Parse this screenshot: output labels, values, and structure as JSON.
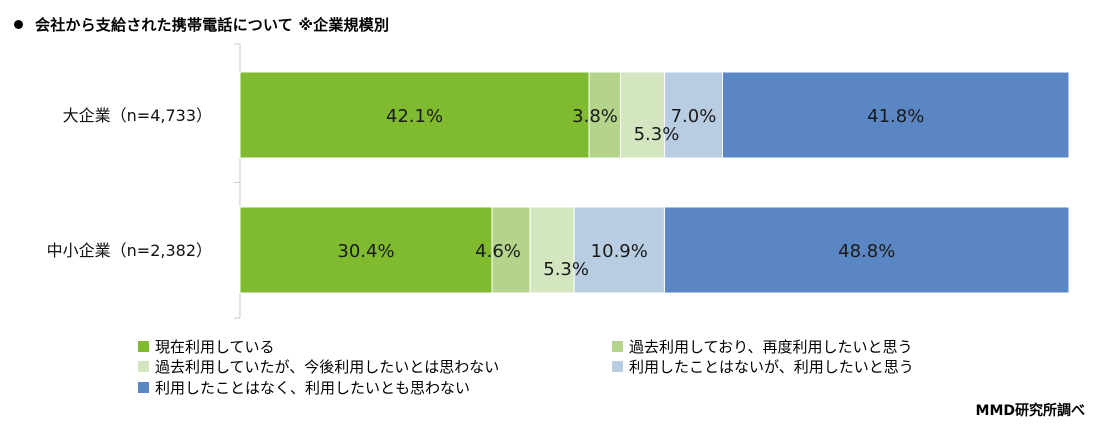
{
  "title": "会社から支給された携帯電話について ※企業規模別",
  "source": "MMD研究所調べ",
  "chart_data": {
    "type": "bar",
    "orientation": "horizontal",
    "stacked": true,
    "percent": true,
    "categories": [
      "大企業（n=4,733）",
      "中小企業（n=2,382）"
    ],
    "series": [
      {
        "name": "現在利用している",
        "values": [
          42.1,
          30.4
        ],
        "color": "#7fba2f",
        "label_color": "#1a1a1a"
      },
      {
        "name": "過去利用しており、再度利用したいと思う",
        "values": [
          3.8,
          4.6
        ],
        "color": "#b3d48a",
        "label_color": "#1a1a1a"
      },
      {
        "name": "過去利用していたが、今後利用したいとは思わない",
        "values": [
          5.3,
          5.3
        ],
        "color": "#d4e6bf",
        "label_color": "#1a1a1a"
      },
      {
        "name": "利用したことはないが、利用したいと思う",
        "values": [
          7.0,
          10.9
        ],
        "color": "#b8cde1",
        "label_color": "#1a1a1a"
      },
      {
        "name": "利用したことはなく、利用したいとも思わない",
        "values": [
          41.8,
          48.8
        ],
        "color": "#5b86c4",
        "label_color": "#1a1a1a"
      }
    ],
    "data_labels": [
      [
        "42.1%",
        "3.8%",
        "5.3%",
        "7.0%",
        "41.8%"
      ],
      [
        "30.4%",
        "4.6%",
        "5.3%",
        "10.9%",
        "48.8%"
      ]
    ],
    "xlim": [
      0,
      100
    ],
    "legend_position": "bottom"
  }
}
